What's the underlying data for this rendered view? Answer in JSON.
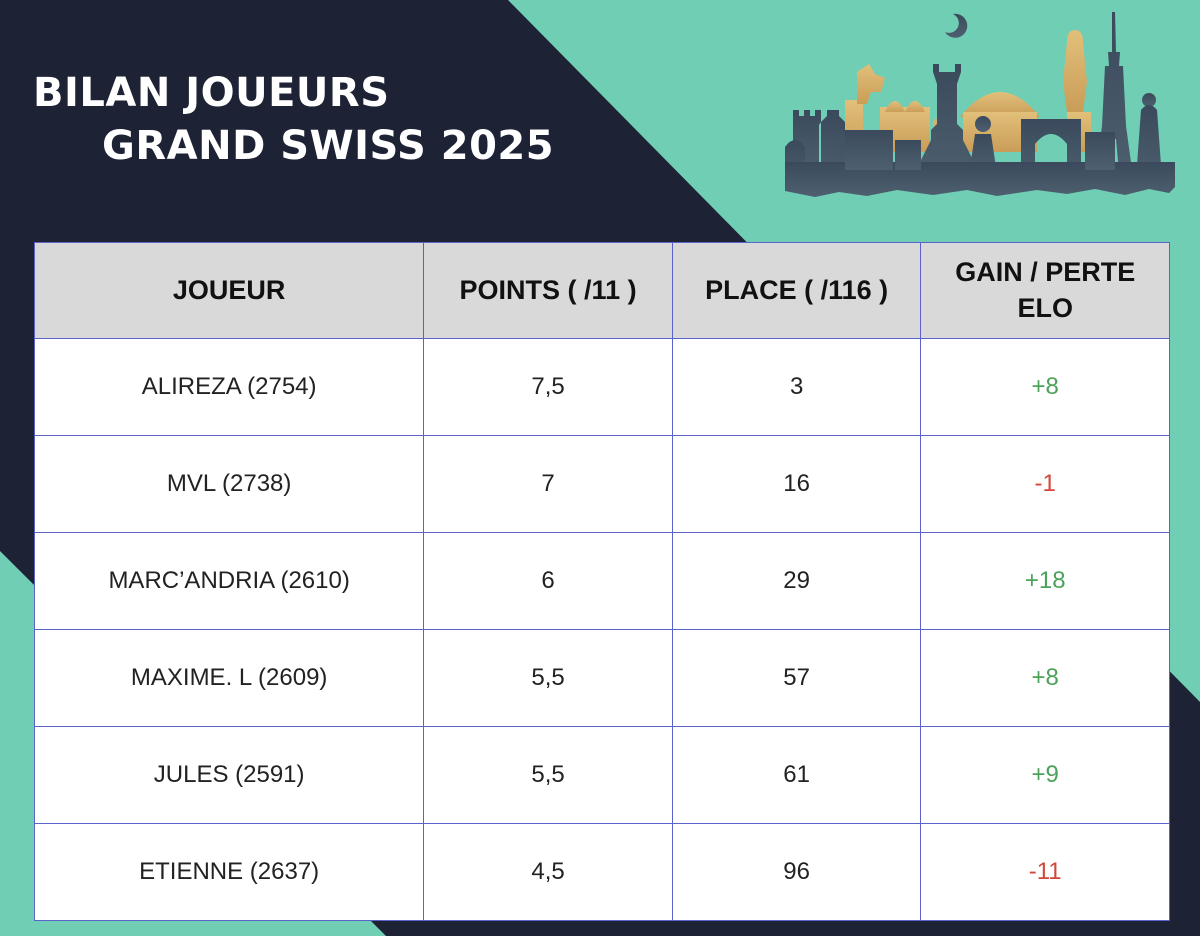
{
  "title": {
    "line1": "BILAN JOUEURS",
    "line2": "GRAND SWISS 2025"
  },
  "colors": {
    "dark_background": "#1d2235",
    "accent_teal": "#6fceb4",
    "header_fill": "#d9d9d9",
    "grid_line": "#5a63c9",
    "gain_color": "#4da25a",
    "loss_color": "#d2473b"
  },
  "illustration": {
    "icon": "city-skyline-chess-pieces"
  },
  "table": {
    "headers": [
      "JOUEUR",
      "POINTS ( /11 )",
      "PLACE ( /116 )",
      "GAIN / PERTE ELO"
    ],
    "rows": [
      {
        "player": "ALIREZA (2754)",
        "points": "7,5",
        "place": "3",
        "elo": "+8",
        "trend": "pos"
      },
      {
        "player": "MVL (2738)",
        "points": "7",
        "place": "16",
        "elo": "-1",
        "trend": "neg"
      },
      {
        "player": "MARC’ANDRIA (2610)",
        "points": "6",
        "place": "29",
        "elo": "+18",
        "trend": "pos"
      },
      {
        "player": "MAXIME. L (2609)",
        "points": "5,5",
        "place": "57",
        "elo": "+8",
        "trend": "pos"
      },
      {
        "player": "JULES (2591)",
        "points": "5,5",
        "place": "61",
        "elo": "+9",
        "trend": "pos"
      },
      {
        "player": "ETIENNE (2637)",
        "points": "4,5",
        "place": "96",
        "elo": "-11",
        "trend": "neg"
      }
    ]
  }
}
